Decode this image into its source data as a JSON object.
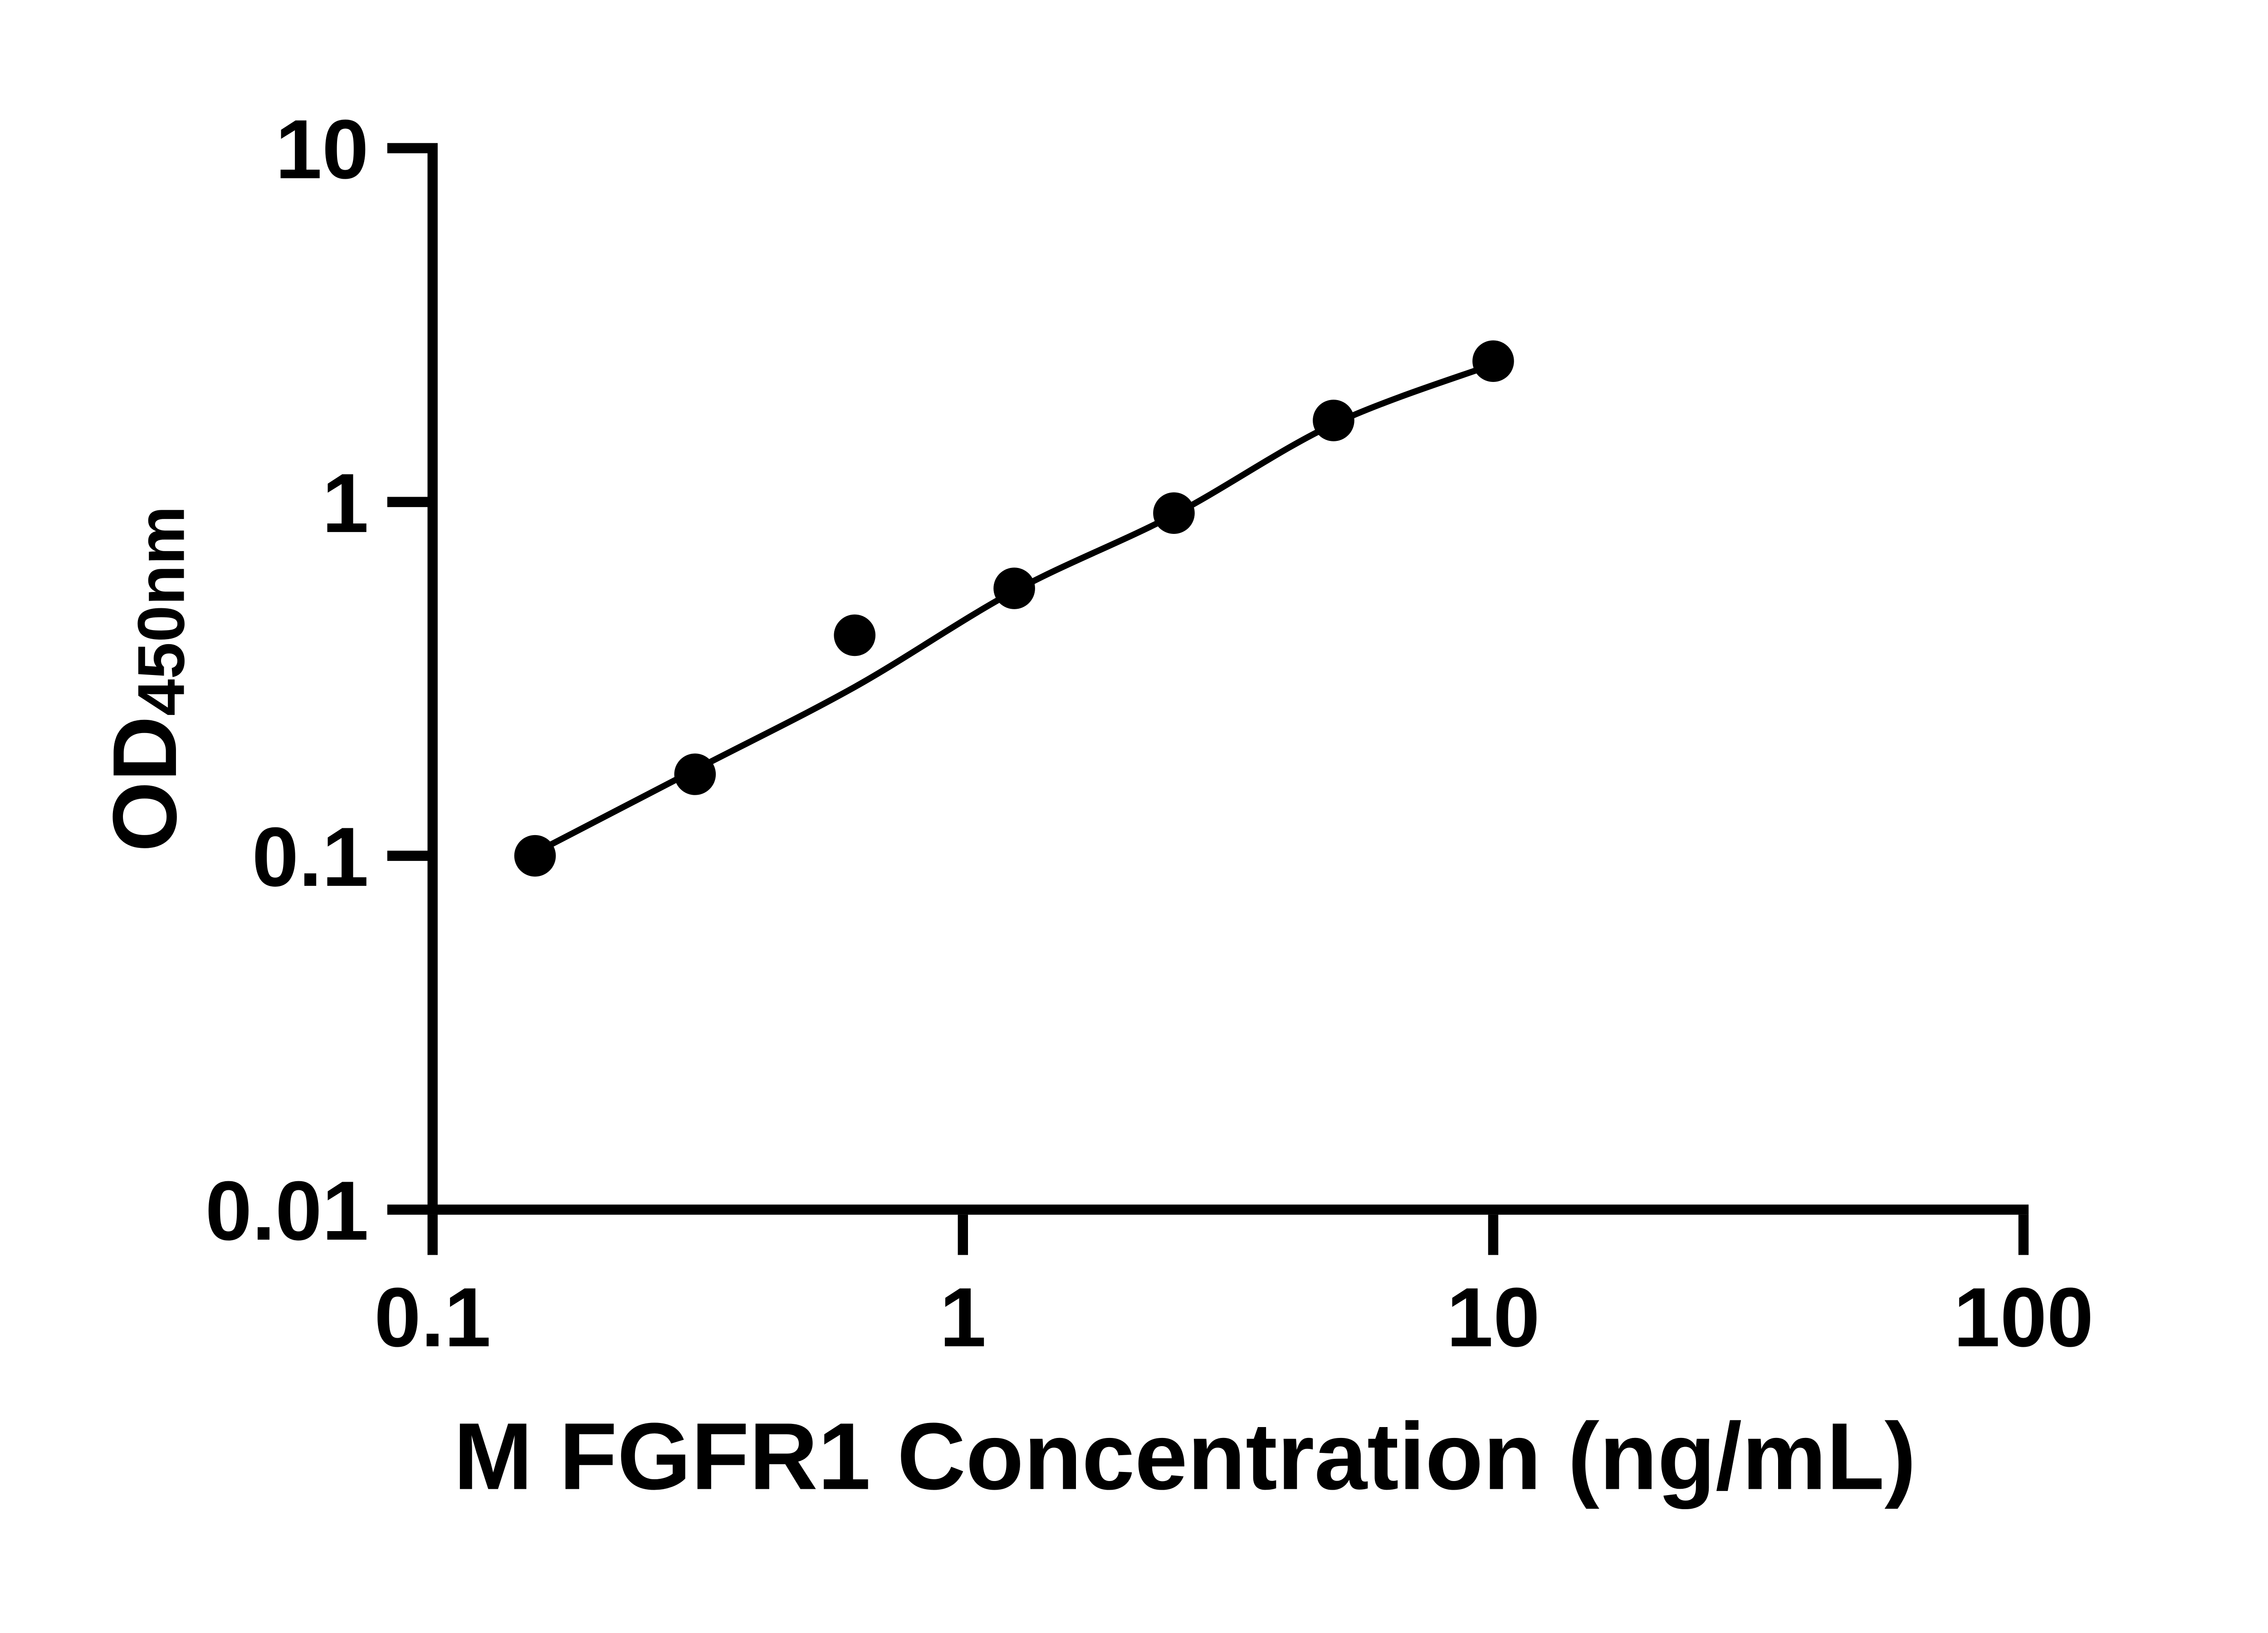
{
  "figure": {
    "background_color": "#ffffff",
    "ink_color": "#000000"
  },
  "chart_data": {
    "type": "scatter",
    "title": "",
    "xlabel": "M FGFR1 Concentration (ng/mL)",
    "ylabel": {
      "text": "OD",
      "subscript": "450nm"
    },
    "x_scale": "log10",
    "y_scale": "log10",
    "xlim": [
      0.1,
      100
    ],
    "ylim": [
      0.01,
      10
    ],
    "grid": false,
    "legend": "none",
    "x_ticks": [
      {
        "value": 0.1,
        "label": "0.1"
      },
      {
        "value": 1,
        "label": "1"
      },
      {
        "value": 10,
        "label": "10"
      },
      {
        "value": 100,
        "label": "100"
      }
    ],
    "y_ticks": [
      {
        "value": 10,
        "label": "10"
      },
      {
        "value": 1,
        "label": "1"
      },
      {
        "value": 0.1,
        "label": "0.1"
      },
      {
        "value": 0.01,
        "label": "0.01"
      }
    ],
    "series": [
      {
        "marker": "circle",
        "color": "#000000",
        "points": [
          {
            "x": 0.156,
            "y": 0.1
          },
          {
            "x": 0.3125,
            "y": 0.17
          },
          {
            "x": 0.625,
            "y": 0.42
          },
          {
            "x": 1.25,
            "y": 0.57
          },
          {
            "x": 2.5,
            "y": 0.93
          },
          {
            "x": 5,
            "y": 1.7
          },
          {
            "x": 10,
            "y": 2.5
          }
        ]
      }
    ],
    "fit_curve": {
      "color": "#000000",
      "points": [
        {
          "x": 0.156,
          "y": 0.102
        },
        {
          "x": 0.3125,
          "y": 0.175
        },
        {
          "x": 0.625,
          "y": 0.3
        },
        {
          "x": 1.25,
          "y": 0.56
        },
        {
          "x": 2.5,
          "y": 0.92
        },
        {
          "x": 5,
          "y": 1.66
        },
        {
          "x": 10,
          "y": 2.45
        }
      ]
    }
  }
}
